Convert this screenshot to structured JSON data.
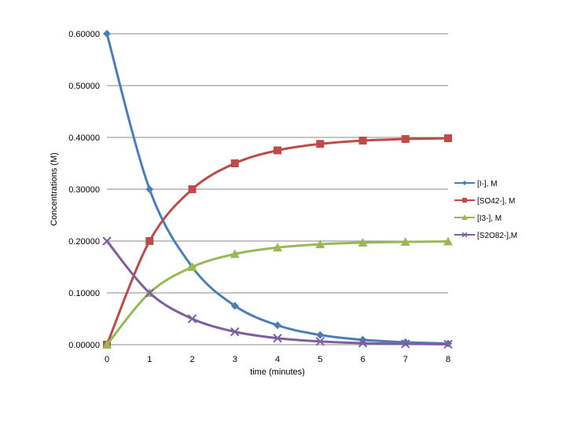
{
  "chart_data": {
    "type": "line",
    "title": "",
    "xlabel": "time (minutes)",
    "ylabel": "Concentrations (M)",
    "x": [
      0,
      1,
      2,
      3,
      4,
      5,
      6,
      7,
      8
    ],
    "x_tick_labels": [
      "0",
      "1",
      "2",
      "3",
      "4",
      "5",
      "6",
      "7",
      "8"
    ],
    "y_tick_labels": [
      "0.00000",
      "0.10000",
      "0.20000",
      "0.30000",
      "0.40000",
      "0.50000",
      "0.60000"
    ],
    "y_ticks": [
      0,
      0.1,
      0.2,
      0.3,
      0.4,
      0.5,
      0.6
    ],
    "xlim": [
      0,
      8
    ],
    "ylim": [
      0,
      0.6
    ],
    "grid": "horizontal",
    "legend_position": "right",
    "series": [
      {
        "name": "[I-], M",
        "color": "#4a7ebb",
        "marker": "diamond",
        "values": [
          0.6,
          0.3,
          0.15,
          0.075,
          0.0375,
          0.0188,
          0.0094,
          0.0047,
          0.0023
        ]
      },
      {
        "name": "[SO42-], M",
        "color": "#be4b48",
        "marker": "square",
        "values": [
          0.0,
          0.2,
          0.3,
          0.35,
          0.375,
          0.3875,
          0.3938,
          0.3969,
          0.3984
        ]
      },
      {
        "name": "[I3-], M",
        "color": "#98b954",
        "marker": "triangle",
        "values": [
          0.0,
          0.1,
          0.15,
          0.175,
          0.1875,
          0.1938,
          0.1969,
          0.1984,
          0.1992
        ]
      },
      {
        "name": "[S2O82-],M",
        "color": "#7d5fa0",
        "marker": "x",
        "values": [
          0.2,
          0.1,
          0.05,
          0.025,
          0.0125,
          0.0063,
          0.0031,
          0.0016,
          0.0008
        ]
      }
    ]
  }
}
